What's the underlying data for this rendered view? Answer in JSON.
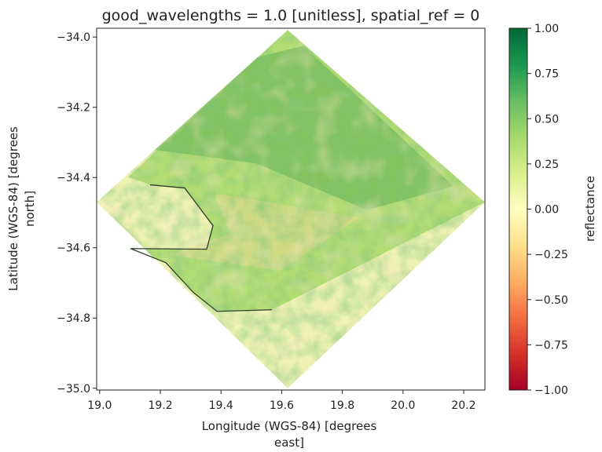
{
  "chart_data": {
    "type": "heatmap",
    "title": "good_wavelengths = 1.0 [unitless], spatial_ref = 0",
    "xlabel_line1": "Longitude (WGS-84) [degrees",
    "xlabel_line2": "east]",
    "ylabel_line1": "Latitude (WGS-84) [degrees",
    "ylabel_line2": "north]",
    "xlim": [
      18.99,
      20.27
    ],
    "ylim": [
      -35.005,
      -33.975
    ],
    "xticks": [
      19.0,
      19.2,
      19.4,
      19.6,
      19.8,
      20.0,
      20.2
    ],
    "xtick_labels": [
      "19.0",
      "19.2",
      "19.4",
      "19.6",
      "19.8",
      "20.0",
      "20.2"
    ],
    "yticks": [
      -34.0,
      -34.2,
      -34.4,
      -34.6,
      -34.8,
      -35.0
    ],
    "ytick_labels": [
      "−34.0",
      "−34.2",
      "−34.4",
      "−34.6",
      "−34.8",
      "−35.0"
    ],
    "raster_footprint_lonlat": [
      [
        19.62,
        -33.98
      ],
      [
        20.27,
        -34.47
      ],
      [
        19.62,
        -35.0
      ],
      [
        18.99,
        -34.47
      ]
    ],
    "colormap": "RdYlGn",
    "colormap_stops": [
      "#a50026",
      "#d73027",
      "#f46d43",
      "#fdae61",
      "#fee08b",
      "#ffffbf",
      "#d9ef8b",
      "#a6d96a",
      "#66bd63",
      "#1a9850",
      "#006837"
    ],
    "colorbar": {
      "label": "reflectance",
      "vmin": -1.0,
      "vmax": 1.0,
      "ticks": [
        1.0,
        0.75,
        0.5,
        0.25,
        0.0,
        -0.25,
        -0.5,
        -0.75,
        -1.0
      ],
      "tick_labels": [
        "1.00",
        "0.75",
        "0.50",
        "0.25",
        "0.00",
        "−0.25",
        "−0.50",
        "−0.75",
        "−1.00"
      ]
    },
    "colors": {
      "ocean": "#eef2b2",
      "land_base": "#b3dc74",
      "vegetation_dense": "#5fae4e",
      "bare_soil": "#f3d99a"
    }
  }
}
